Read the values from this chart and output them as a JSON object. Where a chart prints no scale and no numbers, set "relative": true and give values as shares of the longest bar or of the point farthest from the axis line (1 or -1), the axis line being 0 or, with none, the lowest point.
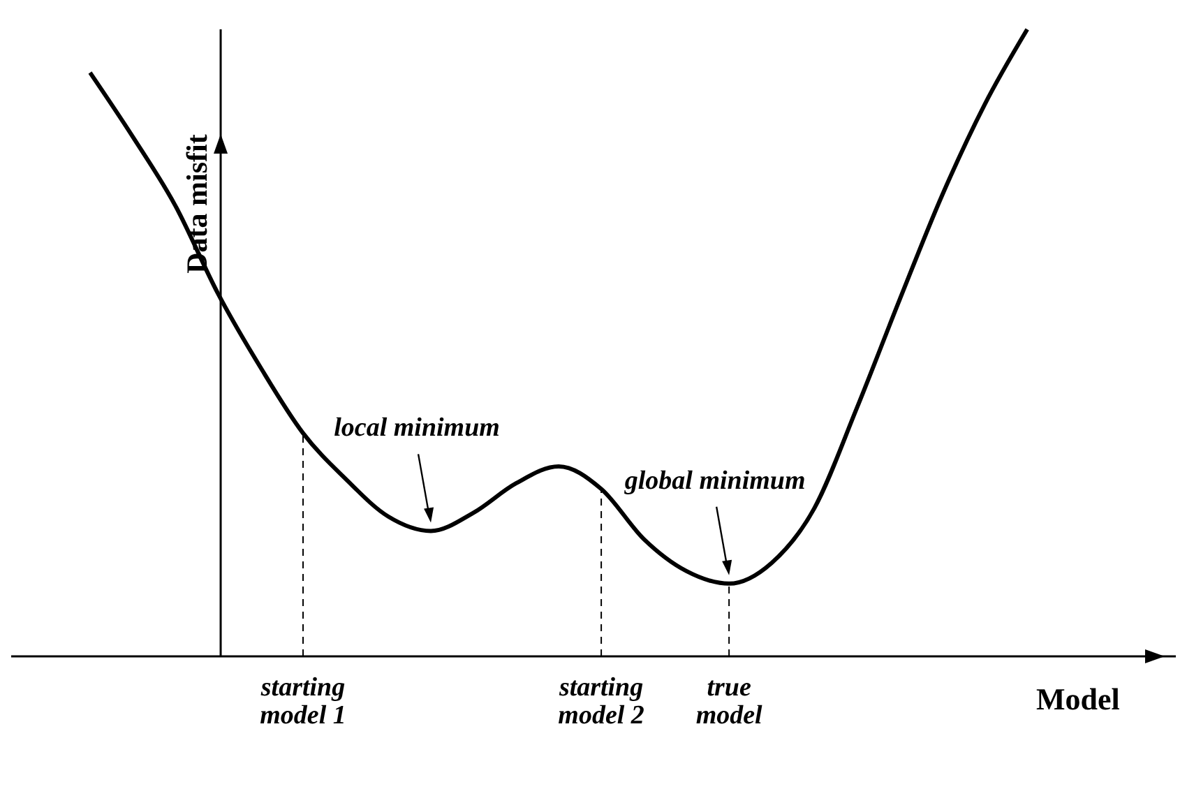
{
  "chart_data": {
    "type": "line",
    "relative": true,
    "xlabel": "Model",
    "ylabel": "Data misfit",
    "line_style": "solid",
    "categories": [
      null,
      null,
      null,
      null,
      null,
      "starting model 1",
      null,
      null,
      null,
      null,
      null,
      null,
      "starting model 2",
      null,
      null,
      "true model",
      null,
      null,
      null,
      null,
      null,
      null,
      null
    ],
    "series": [
      {
        "color": "#000000",
        "values": [
          0.931,
          0.829,
          0.719,
          0.579,
          0.461,
          0.356,
          0.283,
          0.223,
          0.2,
          0.229,
          0.276,
          0.303,
          0.267,
          0.187,
          0.136,
          0.116,
          0.149,
          0.236,
          0.396,
          0.568,
          0.735,
          0.88,
          1
        ]
      }
    ],
    "ref_lines": [
      {
        "axis": "x",
        "value": "starting model 1",
        "color": "#000000",
        "line_style": "dashed"
      },
      {
        "axis": "x",
        "value": "starting model 2",
        "color": "#000000",
        "line_style": "dashed"
      },
      {
        "axis": "x",
        "value": "true model",
        "color": "#000000",
        "line_style": "dashed"
      }
    ],
    "annotations": [
      "local minimum",
      "global minimum"
    ]
  }
}
